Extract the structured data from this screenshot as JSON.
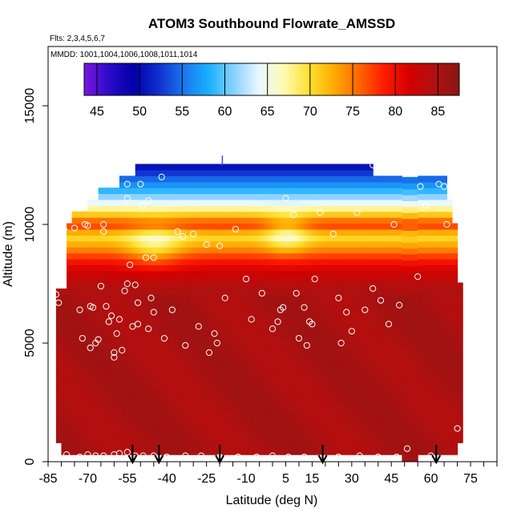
{
  "chart_data": {
    "type": "heatmap",
    "title": "ATOM3 Southbound Flowrate_AMSSD",
    "subtitle_flights": "Flts: 2,3,4,5,6,7",
    "subtitle_dates": "MMDD: 1001,1004,1006,1008,1011,1014",
    "xlabel": "Latitude (deg N)",
    "ylabel": "Altitude (m)",
    "xlim": [
      -85,
      85
    ],
    "ylim": [
      0,
      17500
    ],
    "x_tick_labels": [
      "-85",
      "-70",
      "-55",
      "-40",
      "-25",
      "-10",
      "5",
      "15",
      "30",
      "45",
      "60",
      "75"
    ],
    "y_tick_labels": [
      "0",
      "5000",
      "10000",
      "15000"
    ],
    "colorbar": {
      "range": [
        43.5,
        87.5
      ],
      "tick_labels": [
        "45",
        "50",
        "55",
        "60",
        "65",
        "70",
        "75",
        "80",
        "85"
      ],
      "tick_values": [
        45,
        50,
        55,
        60,
        65,
        70,
        75,
        80,
        85
      ],
      "colors": [
        "#7b17e0",
        "#2a0ac8",
        "#0000a8",
        "#1030d0",
        "#1a78ee",
        "#1ab0ff",
        "#8ad2ff",
        "#eaf8ff",
        "#fffab0",
        "#ffe030",
        "#ffaa00",
        "#ff6600",
        "#ff1a00",
        "#d40000",
        "#b01010",
        "#8c1515"
      ]
    },
    "altitude_profile": {
      "altitude_m": [
        12500,
        12000,
        11500,
        11000,
        10500,
        10000,
        9500,
        9000,
        8500,
        8000,
        7500,
        7000,
        0
      ],
      "flowrate": [
        50,
        54,
        58,
        63,
        70,
        78,
        70,
        74,
        79,
        82,
        84,
        85,
        85
      ]
    },
    "scatter_points": [
      [
        -82,
        7050
      ],
      [
        -81,
        6700
      ],
      [
        -79,
        9800
      ],
      [
        -75,
        9850
      ],
      [
        -73,
        6400
      ],
      [
        -72,
        5200
      ],
      [
        -71,
        10000
      ],
      [
        -70,
        9950
      ],
      [
        -69,
        6550
      ],
      [
        -69,
        4800
      ],
      [
        -68,
        6500
      ],
      [
        -67,
        5000
      ],
      [
        -66,
        5150
      ],
      [
        -65,
        7400
      ],
      [
        -64,
        9700
      ],
      [
        -64,
        10000
      ],
      [
        -63,
        6550
      ],
      [
        -62,
        5900
      ],
      [
        -61,
        6150
      ],
      [
        -60,
        4400
      ],
      [
        -60,
        4600
      ],
      [
        -59,
        5400
      ],
      [
        -58,
        6000
      ],
      [
        -57,
        4700
      ],
      [
        -56,
        7200
      ],
      [
        -55,
        11100
      ],
      [
        -55,
        11700
      ],
      [
        -55,
        7500
      ],
      [
        -54,
        8300
      ],
      [
        -53,
        5700
      ],
      [
        -52,
        7450
      ],
      [
        -51,
        5800
      ],
      [
        -51,
        6700
      ],
      [
        -50,
        11700
      ],
      [
        -49,
        10800
      ],
      [
        -48,
        8600
      ],
      [
        -47,
        5600
      ],
      [
        -47,
        11000
      ],
      [
        -46,
        6900
      ],
      [
        -45,
        6300
      ],
      [
        -45,
        8600
      ],
      [
        -42,
        12000
      ],
      [
        -41,
        5200
      ],
      [
        -38,
        6400
      ],
      [
        -36,
        9700
      ],
      [
        -34,
        9500
      ],
      [
        -33,
        4900
      ],
      [
        -30,
        9600
      ],
      [
        -28,
        5700
      ],
      [
        -25,
        9150
      ],
      [
        -24,
        4600
      ],
      [
        -22,
        5400
      ],
      [
        -21,
        5000
      ],
      [
        -20,
        9100
      ],
      [
        -18,
        6900
      ],
      [
        -14,
        9800
      ],
      [
        -10,
        7700
      ],
      [
        -8,
        6000
      ],
      [
        -4,
        7100
      ],
      [
        0,
        5600
      ],
      [
        2,
        5900
      ],
      [
        3,
        6400
      ],
      [
        4,
        6500
      ],
      [
        5,
        11100
      ],
      [
        8,
        10400
      ],
      [
        9,
        7100
      ],
      [
        10,
        5200
      ],
      [
        12,
        6500
      ],
      [
        13,
        4900
      ],
      [
        14,
        5900
      ],
      [
        15,
        5800
      ],
      [
        16,
        7700
      ],
      [
        18,
        10500
      ],
      [
        23,
        9600
      ],
      [
        25,
        6900
      ],
      [
        26,
        5000
      ],
      [
        28,
        6300
      ],
      [
        30,
        5500
      ],
      [
        32,
        10500
      ],
      [
        35,
        6400
      ],
      [
        38,
        7300
      ],
      [
        38,
        12500
      ],
      [
        41,
        6800
      ],
      [
        44,
        5800
      ],
      [
        46,
        10000
      ],
      [
        48,
        6600
      ],
      [
        55,
        7800
      ],
      [
        56,
        11600
      ],
      [
        58,
        10800
      ],
      [
        63,
        11700
      ],
      [
        65,
        11600
      ],
      [
        66,
        10000
      ],
      [
        -78,
        300
      ],
      [
        -73,
        200
      ],
      [
        -70,
        300
      ],
      [
        -67,
        250
      ],
      [
        -64,
        250
      ],
      [
        -60,
        300
      ],
      [
        -58,
        350
      ],
      [
        -55,
        400
      ],
      [
        -52,
        250
      ],
      [
        -49,
        250
      ],
      [
        -45,
        250
      ],
      [
        -40,
        200
      ],
      [
        -33,
        250
      ],
      [
        -27,
        250
      ],
      [
        -20,
        200
      ],
      [
        -13,
        200
      ],
      [
        -6,
        200
      ],
      [
        0,
        250
      ],
      [
        6,
        200
      ],
      [
        12,
        200
      ],
      [
        18,
        150
      ],
      [
        25,
        200
      ],
      [
        33,
        250
      ],
      [
        40,
        200
      ],
      [
        47,
        200
      ],
      [
        51,
        550
      ],
      [
        60,
        250
      ],
      [
        70,
        1400
      ]
    ],
    "arrows_latitude": [
      -53,
      -43,
      -20,
      19,
      62
    ],
    "arrow_direction": "down"
  }
}
